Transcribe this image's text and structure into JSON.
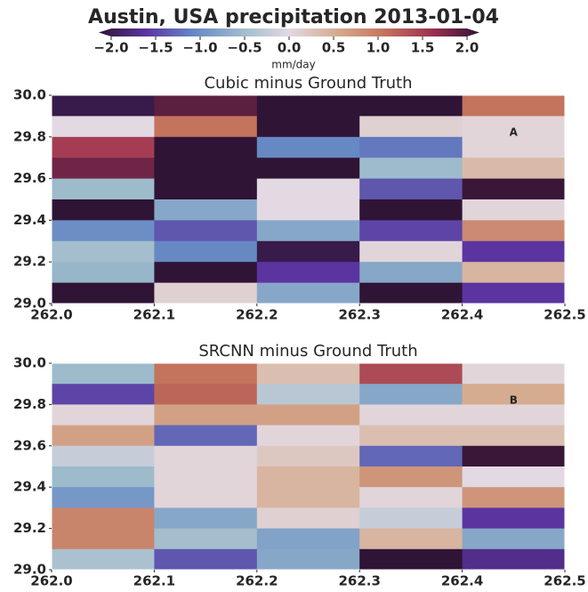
{
  "title": "Austin, USA precipitation 2013-01-04",
  "colorbar": {
    "label": "mm/day",
    "lim": [
      -2,
      2
    ],
    "colors": [
      "#2f1436",
      "#5b34a0",
      "#6689c4",
      "#9dbbcb",
      "#e2d9e2",
      "#d5ac8f",
      "#c4735d",
      "#9c3050",
      "#2f1436"
    ],
    "ticks": [
      {
        "value": -2,
        "label": "−2.0"
      },
      {
        "value": -1.5,
        "label": "−1.5"
      },
      {
        "value": -1,
        "label": "−1.0"
      },
      {
        "value": -0.5,
        "label": "−0.5"
      },
      {
        "value": 0,
        "label": "0.0"
      },
      0.5,
      {
        "value": 1,
        "label": "1.0"
      },
      1.5,
      {
        "value": 2,
        "label": "2.0"
      }
    ]
  },
  "chart_data": [
    {
      "type": "heatmap",
      "title": "Cubic minus Ground Truth",
      "xlim": [
        262.0,
        262.5
      ],
      "ylim": [
        29.0,
        30.0
      ],
      "xticks": [
        {
          "value": 262.0,
          "label": "262.0"
        },
        262.1,
        262.2,
        262.3,
        262.4,
        262.5
      ],
      "yticks": [
        {
          "value": 29.0,
          "label": "29.0"
        },
        29.2,
        29.4,
        29.6,
        29.8,
        {
          "value": 30.0,
          "label": "30.0"
        }
      ],
      "values": [
        [
          -1.9,
          1.8,
          -2,
          -2,
          1.0
        ],
        [
          0.0,
          1.0,
          -2,
          0.1,
          0.05
        ],
        [
          1.4,
          -2,
          -1.0,
          -1.1,
          0.05
        ],
        [
          1.7,
          -2,
          -2,
          -0.5,
          0.35
        ],
        [
          -0.5,
          -2,
          0.0,
          -1.3,
          1.95
        ],
        [
          -2,
          -0.7,
          0.0,
          -2,
          0.05
        ],
        [
          -0.95,
          -1.3,
          -0.7,
          -1.4,
          0.8
        ],
        [
          -0.45,
          -1.0,
          -1.9,
          0.05,
          -1.5
        ],
        [
          -0.55,
          -2,
          -1.5,
          -0.7,
          0.4
        ],
        [
          -2,
          0.1,
          -0.7,
          -2,
          -1.5
        ]
      ],
      "annotations": [
        {
          "text": "A",
          "x": 262.45,
          "y": 29.82
        }
      ]
    },
    {
      "type": "heatmap",
      "title": "SRCNN minus Ground Truth",
      "xlim": [
        262.0,
        262.5
      ],
      "ylim": [
        29.0,
        30.0
      ],
      "xticks": [
        {
          "value": 262.0,
          "label": "262.0"
        },
        262.1,
        262.2,
        262.3,
        262.4,
        262.5
      ],
      "yticks": [
        {
          "value": 29.0,
          "label": "29.0"
        },
        29.2,
        29.4,
        29.6,
        29.8,
        {
          "value": 30.0,
          "label": "30.0"
        }
      ],
      "values": [
        [
          -0.5,
          1.0,
          0.3,
          1.3,
          0.05
        ],
        [
          -1.4,
          1.1,
          -0.3,
          -0.7,
          0.5
        ],
        [
          0.05,
          0.6,
          0.6,
          0.05,
          0.05
        ],
        [
          0.6,
          -1.2,
          0.05,
          0.3,
          0.3
        ],
        [
          -0.2,
          0.05,
          0.2,
          -1.2,
          1.95
        ],
        [
          -0.5,
          0.05,
          0.4,
          0.7,
          0.0
        ],
        [
          -0.85,
          0.05,
          0.4,
          0.05,
          0.7
        ],
        [
          0.85,
          -0.7,
          0.1,
          -0.2,
          -1.5
        ],
        [
          0.85,
          -0.45,
          -0.75,
          0.4,
          -0.7
        ],
        [
          -0.4,
          -1.3,
          -0.7,
          -2,
          -1.6
        ]
      ],
      "annotations": [
        {
          "text": "B",
          "x": 262.45,
          "y": 29.82
        }
      ]
    }
  ]
}
